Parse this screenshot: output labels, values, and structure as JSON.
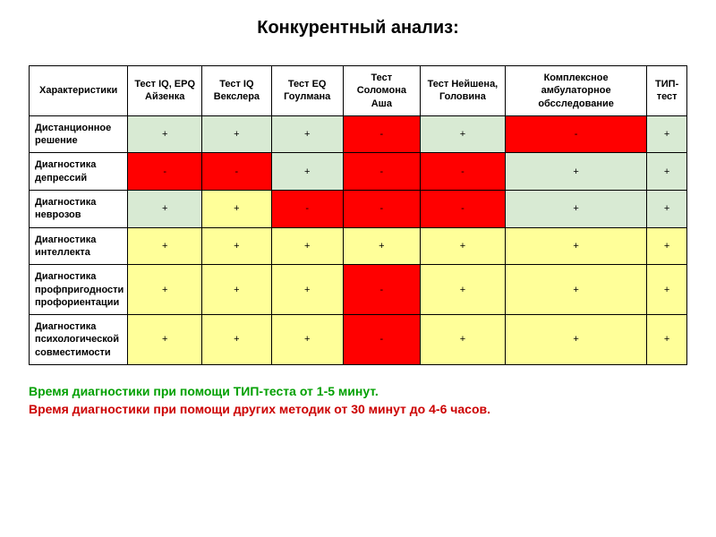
{
  "title": "Конкурентный анализ:",
  "columns": [
    "Характеристики",
    "Тест IQ, EPQ Айзенка",
    "Тест IQ Векслера",
    "Тест EQ Гоулмана",
    "Тест Соломона Аша",
    "Тест Нейшена, Головина",
    "Комплексное амбулаторное обсследование",
    "ТИП-тест"
  ],
  "rows": [
    {
      "label": "Дистанционное решение",
      "cells": [
        {
          "text": "+",
          "color": "green"
        },
        {
          "text": "+",
          "color": "green"
        },
        {
          "text": "+",
          "color": "green"
        },
        {
          "text": "-",
          "color": "red"
        },
        {
          "text": "+",
          "color": "green"
        },
        {
          "text": "-",
          "color": "red"
        },
        {
          "text": "+",
          "color": "green"
        }
      ]
    },
    {
      "label": "Диагностика депрессий",
      "cells": [
        {
          "text": "-",
          "color": "red"
        },
        {
          "text": "-",
          "color": "red"
        },
        {
          "text": "+",
          "color": "green"
        },
        {
          "text": "-",
          "color": "red"
        },
        {
          "text": "-",
          "color": "red"
        },
        {
          "text": "+",
          "color": "green"
        },
        {
          "text": "+",
          "color": "green"
        }
      ]
    },
    {
      "label": "Диагностика неврозов",
      "cells": [
        {
          "text": "+",
          "color": "green"
        },
        {
          "text": "+",
          "color": "yellow"
        },
        {
          "text": "-",
          "color": "red"
        },
        {
          "text": "-",
          "color": "red"
        },
        {
          "text": "-",
          "color": "red"
        },
        {
          "text": "+",
          "color": "green"
        },
        {
          "text": "+",
          "color": "green"
        }
      ]
    },
    {
      "label": "Диагностика интеллекта",
      "cells": [
        {
          "text": "+",
          "color": "yellow"
        },
        {
          "text": "+",
          "color": "yellow"
        },
        {
          "text": "+",
          "color": "yellow"
        },
        {
          "text": "+",
          "color": "yellow"
        },
        {
          "text": "+",
          "color": "yellow"
        },
        {
          "text": "+",
          "color": "yellow"
        },
        {
          "text": "+",
          "color": "yellow"
        }
      ]
    },
    {
      "label": "Диагностика профпригодности профориентации",
      "cells": [
        {
          "text": "+",
          "color": "yellow"
        },
        {
          "text": "+",
          "color": "yellow"
        },
        {
          "text": "+",
          "color": "yellow"
        },
        {
          "text": "-",
          "color": "red"
        },
        {
          "text": "+",
          "color": "yellow"
        },
        {
          "text": "+",
          "color": "yellow"
        },
        {
          "text": "+",
          "color": "yellow"
        }
      ]
    },
    {
      "label": "Диагностика психологической совместимости",
      "cells": [
        {
          "text": "+",
          "color": "yellow"
        },
        {
          "text": "+",
          "color": "yellow"
        },
        {
          "text": "+",
          "color": "yellow"
        },
        {
          "text": "-",
          "color": "red"
        },
        {
          "text": "+",
          "color": "yellow"
        },
        {
          "text": "+",
          "color": "yellow"
        },
        {
          "text": "+",
          "color": "yellow"
        }
      ]
    }
  ],
  "footer1": "Время диагностики при помощи ТИП-теста от 1-5 минут.",
  "footer2": "Время диагностики при помощи других методик от 30 минут до 4-6 часов.",
  "colors": {
    "green": "#d8ead3",
    "yellow": "#ffff99",
    "red": "#ff0000"
  }
}
